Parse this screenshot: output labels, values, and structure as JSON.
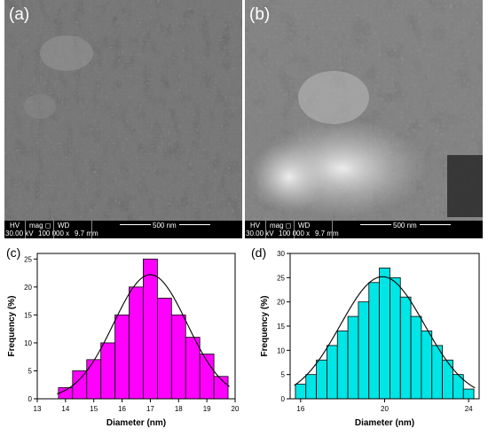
{
  "sem_panels": [
    {
      "label": "(a)",
      "hv_label": "HV",
      "mag_label": "mag ◻",
      "wd_label": "WD",
      "hv": "30.00 kV",
      "mag": "100 000 x",
      "wd": "9.7 mm",
      "scale": "500 nm"
    },
    {
      "label": "(b)",
      "hv_label": "HV",
      "mag_label": "mag ◻",
      "wd_label": "WD",
      "hv": "30.00 kV",
      "mag": "100 000 x",
      "wd": "9.7 mm",
      "scale": "500 nm"
    }
  ],
  "chart_labels": {
    "c": "(c)",
    "d": "(d)"
  },
  "colors": {
    "magenta": "#ff00ff",
    "cyan": "#00e5e5",
    "fit": "#000000"
  },
  "chart_data": [
    {
      "type": "bar",
      "xlabel": "Diameter (nm)",
      "ylabel": "Frequency (%)",
      "xlim": [
        13,
        20
      ],
      "ylim": [
        0,
        26
      ],
      "xticks": [
        13,
        14,
        15,
        16,
        17,
        18,
        19,
        20
      ],
      "yticks": [
        0,
        5,
        10,
        15,
        20,
        25
      ],
      "bin_width": 0.5,
      "bin_centers": [
        14.0,
        14.5,
        15.0,
        15.5,
        16.0,
        16.5,
        17.0,
        17.5,
        18.0,
        18.5,
        19.0,
        19.5
      ],
      "values": [
        2,
        5,
        7,
        10,
        15,
        20,
        25,
        18,
        15,
        11,
        8,
        4
      ],
      "fit": {
        "type": "gaussian",
        "center": 17.0,
        "sigma": 1.3,
        "peak": 22.2
      }
    },
    {
      "type": "bar",
      "xlabel": "Diameter (nm)",
      "ylabel": "Frequency (%)",
      "xlim": [
        15.5,
        24.5
      ],
      "ylim": [
        0,
        30
      ],
      "xticks": [
        16,
        20,
        24
      ],
      "yticks": [
        0,
        5,
        10,
        15,
        20,
        25,
        30
      ],
      "bin_width": 0.5,
      "bin_centers": [
        16.0,
        16.5,
        17.0,
        17.5,
        18.0,
        18.5,
        19.0,
        19.5,
        20.0,
        20.5,
        21.0,
        21.5,
        22.0,
        22.5,
        23.0,
        23.5,
        24.0
      ],
      "values": [
        3,
        5,
        8,
        11,
        14,
        17,
        20,
        24,
        27,
        25,
        21,
        17,
        14,
        11,
        8,
        5,
        2
      ],
      "fit": {
        "type": "gaussian",
        "center": 19.9,
        "sigma": 2.0,
        "peak": 25.2
      }
    }
  ]
}
